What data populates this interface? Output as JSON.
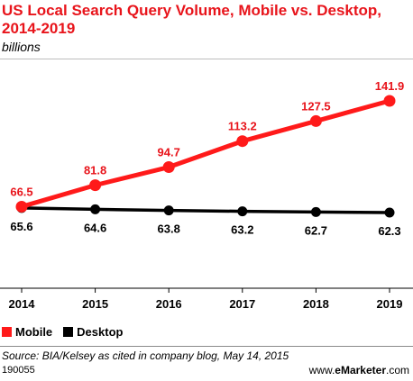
{
  "header": {
    "title": "US Local Search Query Volume, Mobile vs. Desktop, 2014-2019",
    "subtitle": "billions"
  },
  "chart_data": {
    "type": "line",
    "title": "US Local Search Query Volume, Mobile vs. Desktop, 2014-2019",
    "subtitle": "billions",
    "xlabel": "",
    "ylabel": "",
    "categories": [
      "2014",
      "2015",
      "2016",
      "2017",
      "2018",
      "2019"
    ],
    "series": [
      {
        "name": "Mobile",
        "color": "#ff1a1a",
        "values": [
          66.5,
          81.8,
          94.7,
          113.2,
          127.5,
          141.9
        ],
        "labels": [
          "66.5",
          "81.8",
          "94.7",
          "113.2",
          "127.5",
          "141.9"
        ]
      },
      {
        "name": "Desktop",
        "color": "#000000",
        "values": [
          65.6,
          64.6,
          63.8,
          63.2,
          62.7,
          62.3
        ],
        "labels": [
          "65.6",
          "64.6",
          "63.8",
          "63.2",
          "62.7",
          "62.3"
        ]
      }
    ],
    "grid": false,
    "legend_position": "bottom-left"
  },
  "footer": {
    "source": "Source: BIA/Kelsey as cited in company blog, May 14, 2015",
    "chart_id": "190055",
    "brand_prefix": "www.",
    "brand_name": "eMarketer",
    "brand_suffix": ".com"
  }
}
